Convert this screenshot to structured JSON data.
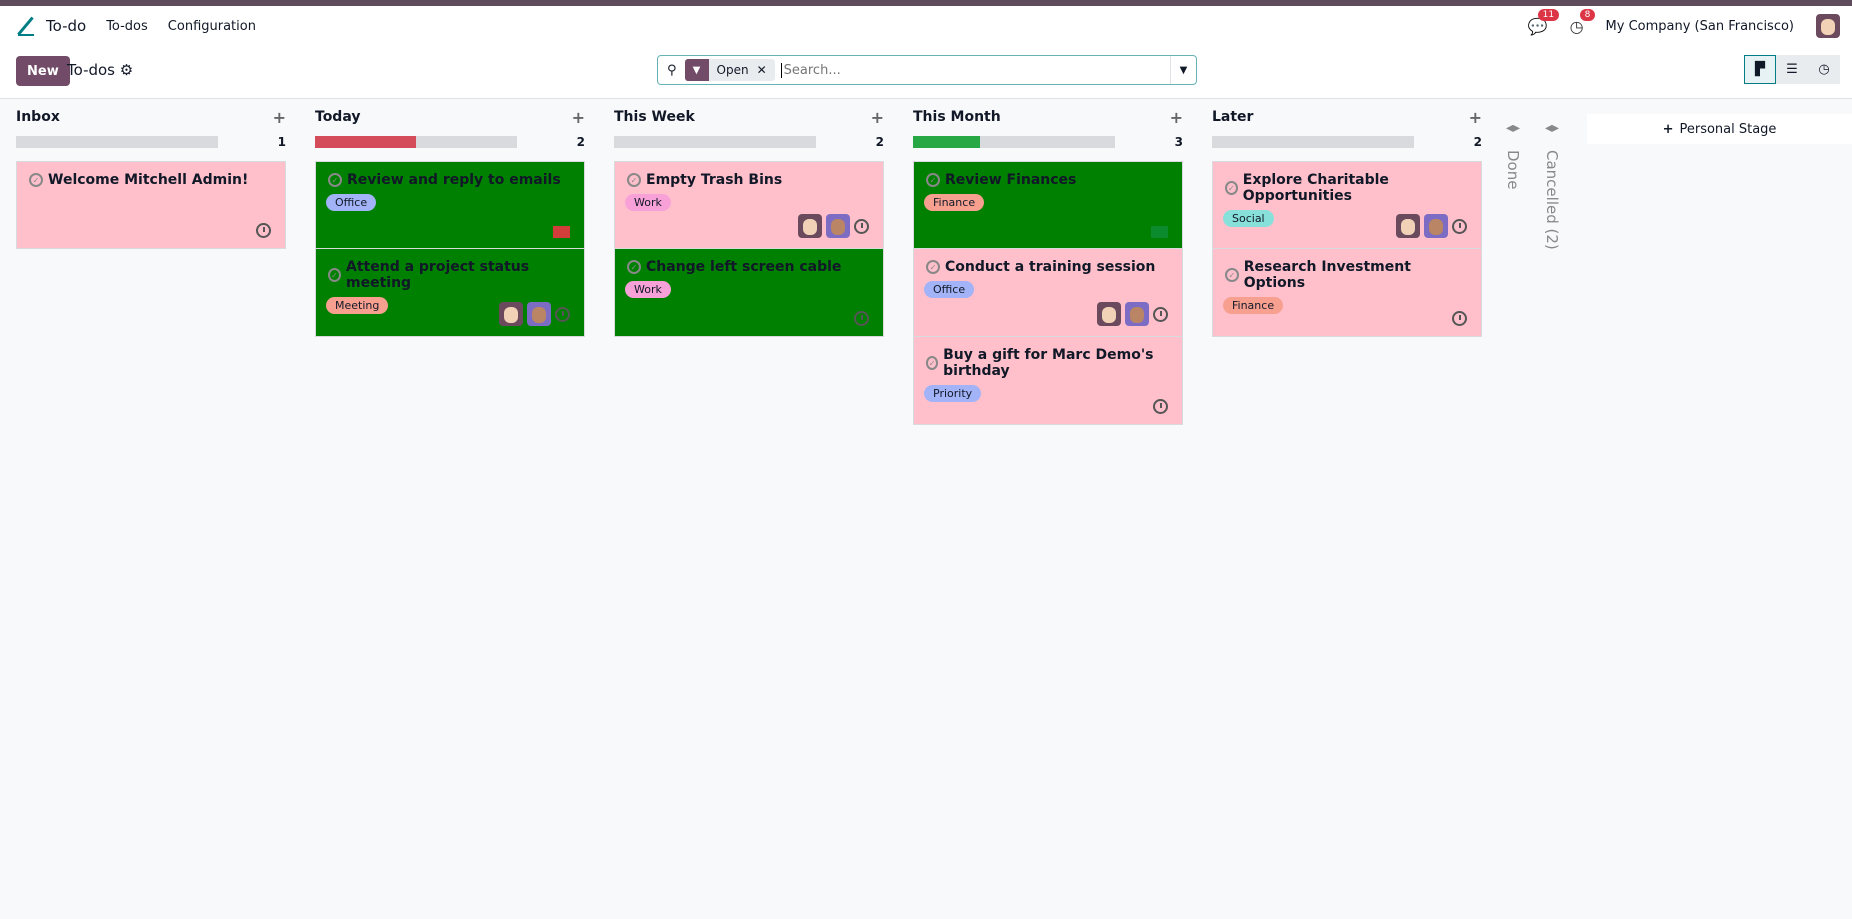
{
  "nav": {
    "app": "To-do",
    "menu": [
      "To-dos",
      "Configuration"
    ],
    "messages_count": "11",
    "activities_count": "8",
    "company": "My Company (San Francisco)"
  },
  "control": {
    "new_label": "New",
    "breadcrumb": "To-dos",
    "facet": "Open",
    "search_placeholder": "Search..."
  },
  "colors": {
    "brand": "#714b67",
    "card_pink": "#ffc0cb",
    "card_green": "#008000"
  },
  "columns": [
    {
      "name": "Inbox",
      "count": "1",
      "progress": {
        "color": "",
        "fraction": 0
      },
      "cards": [
        {
          "title": "Welcome Mitchell Admin!",
          "bg": "#ffc0cb",
          "tag": "",
          "tag_color": "",
          "avatars": 0,
          "icon": "clock"
        }
      ]
    },
    {
      "name": "Today",
      "count": "2",
      "progress": {
        "color": "#d44c59",
        "fraction": 0.5
      },
      "cards": [
        {
          "title": "Review and reply to emails",
          "bg": "#008000",
          "tag": "Office",
          "tag_color": "#a2b3f7",
          "avatars": 0,
          "icon": "mail",
          "icon_color": "#d23f3a"
        },
        {
          "title": "Attend a project status meeting",
          "bg": "#008000",
          "tag": "Meeting",
          "tag_color": "#f8a090",
          "avatars": 2,
          "icon": "clock"
        }
      ]
    },
    {
      "name": "This Week",
      "count": "2",
      "progress": {
        "color": "",
        "fraction": 0
      },
      "cards": [
        {
          "title": "Empty Trash Bins",
          "bg": "#ffc0cb",
          "tag": "Work",
          "tag_color": "#f7a1d8",
          "avatars": 2,
          "icon": "clock"
        },
        {
          "title": "Change left screen cable",
          "bg": "#008000",
          "tag": "Work",
          "tag_color": "#f7a1d8",
          "avatars": 0,
          "icon": "clock"
        }
      ]
    },
    {
      "name": "This Month",
      "count": "3",
      "progress": {
        "color": "#28a745",
        "fraction": 0.333
      },
      "cards": [
        {
          "title": "Review Finances",
          "bg": "#008000",
          "tag": "Finance",
          "tag_color": "#f8a090",
          "avatars": 0,
          "icon": "mail",
          "icon_color": "#0b8a2e"
        },
        {
          "title": "Conduct a training session",
          "bg": "#ffc0cb",
          "tag": "Office",
          "tag_color": "#a2b3f7",
          "avatars": 2,
          "icon": "clock"
        },
        {
          "title": "Buy a gift for Marc Demo's birthday",
          "bg": "#ffc0cb",
          "tag": "Priority",
          "tag_color": "#a2b3f7",
          "avatars": 0,
          "icon": "clock"
        }
      ]
    },
    {
      "name": "Later",
      "count": "2",
      "progress": {
        "color": "",
        "fraction": 0
      },
      "cards": [
        {
          "title": "Explore Charitable Opportunities",
          "bg": "#ffc0cb",
          "tag": "Social",
          "tag_color": "#88e0da",
          "avatars": 2,
          "icon": "clock"
        },
        {
          "title": "Research Investment Options",
          "bg": "#ffc0cb",
          "tag": "Finance",
          "tag_color": "#f8a090",
          "avatars": 0,
          "icon": "clock"
        }
      ]
    }
  ],
  "folded": [
    "Done",
    "Cancelled (2)"
  ],
  "personal_stage": "Personal Stage"
}
